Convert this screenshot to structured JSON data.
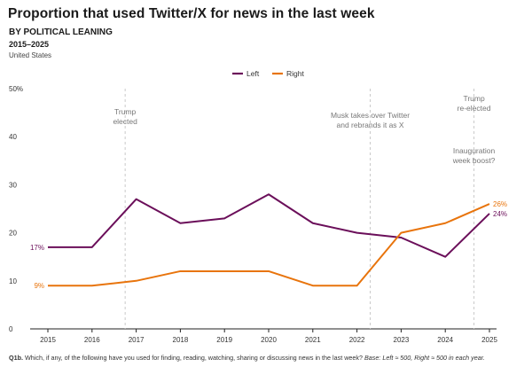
{
  "header": {
    "title": "Proportion that used Twitter/X for news in the last week",
    "subtitle": "BY POLITICAL LEANING",
    "years": "2015–2025",
    "region": "United States"
  },
  "footnote": {
    "question": "Q1b.",
    "text": " Which, if any, of the following have you used for finding, reading, watching, sharing or discussing news in the last week? ",
    "base": "Base: Left ≈ 500, Right ≈ 500 in each year."
  },
  "chart_data": {
    "type": "line",
    "x": [
      2015,
      2016,
      2017,
      2018,
      2019,
      2020,
      2021,
      2022,
      2023,
      2024,
      2025
    ],
    "xlim": [
      2015,
      2025
    ],
    "ylim": [
      0,
      50
    ],
    "yticks": [
      0,
      10,
      20,
      30,
      40,
      50
    ],
    "ytick_labels": [
      "0",
      "10",
      "20",
      "30",
      "40",
      "50%"
    ],
    "grid": false,
    "legend": "top-center",
    "series": [
      {
        "name": "Left",
        "color": "#6b0f5a",
        "values": [
          17,
          17,
          27,
          22,
          23,
          28,
          22,
          20,
          19,
          15,
          24
        ],
        "start_label": "17%",
        "end_label": "24%"
      },
      {
        "name": "Right",
        "color": "#e8740c",
        "values": [
          9,
          9,
          10,
          12,
          12,
          12,
          9,
          9,
          20,
          22,
          26
        ],
        "start_label": "9%",
        "end_label": "26%"
      }
    ],
    "annotations": [
      {
        "x": 2016.75,
        "lines": [
          "Trump",
          "elected"
        ]
      },
      {
        "x": 2022.3,
        "lines": [
          "Musk takes over Twitter",
          "and rebrands it as X"
        ]
      },
      {
        "x": 2024.65,
        "lines": [
          "Trump",
          "re-elected"
        ]
      },
      {
        "x": 2024.65,
        "lines": [
          "Inauguration",
          "week boost?"
        ]
      }
    ]
  }
}
